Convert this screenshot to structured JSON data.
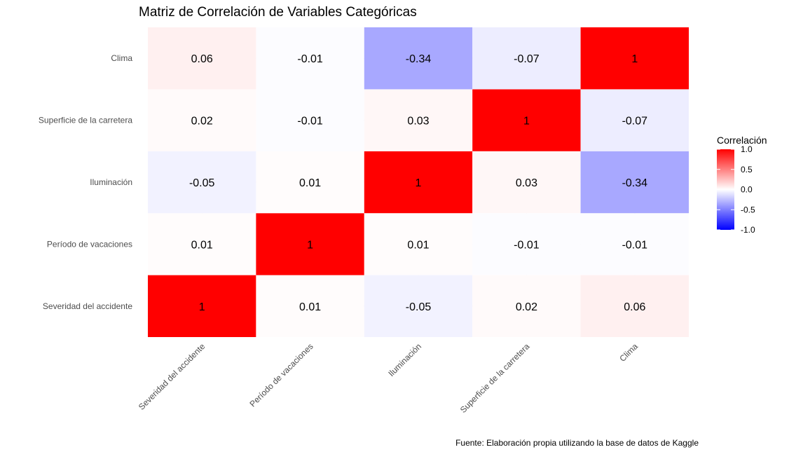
{
  "chart_data": {
    "type": "heatmap",
    "title": "Matriz de Correlación de Variables Categóricas",
    "caption": "Fuente: Elaboración propia utilizando la base de datos de Kaggle",
    "x_categories": [
      "Severidad del accidente",
      "Período de vacaciones",
      "Iluminación",
      "Superficie de la carretera",
      "Clima"
    ],
    "y_categories": [
      "Severidad del accidente",
      "Período de vacaciones",
      "Iluminación",
      "Superficie de la carretera",
      "Clima"
    ],
    "values": [
      [
        1,
        0.01,
        -0.05,
        0.02,
        0.06
      ],
      [
        0.01,
        1,
        0.01,
        -0.01,
        -0.01
      ],
      [
        -0.05,
        0.01,
        1,
        0.03,
        -0.34
      ],
      [
        0.02,
        -0.01,
        0.03,
        1,
        -0.07
      ],
      [
        0.06,
        -0.01,
        -0.34,
        -0.07,
        1
      ]
    ],
    "labels": [
      [
        "1",
        "0.01",
        "-0.05",
        "0.02",
        "0.06"
      ],
      [
        "0.01",
        "1",
        "0.01",
        "-0.01",
        "-0.01"
      ],
      [
        "-0.05",
        "0.01",
        "1",
        "0.03",
        "-0.34"
      ],
      [
        "0.02",
        "-0.01",
        "0.03",
        "1",
        "-0.07"
      ],
      [
        "0.06",
        "-0.01",
        "-0.34",
        "-0.07",
        "1"
      ]
    ],
    "legend": {
      "title": "Correlación",
      "range": [
        -1,
        1
      ],
      "ticks": [
        1,
        0.5,
        0,
        -0.5,
        -1
      ],
      "tick_labels": [
        "1.0",
        "0.5",
        "0.0",
        "-0.5",
        "-1.0"
      ],
      "low_color": "#0000ff",
      "mid_color": "#ffffff",
      "high_color": "#ff0000",
      "placement": "right"
    },
    "grid": true
  }
}
